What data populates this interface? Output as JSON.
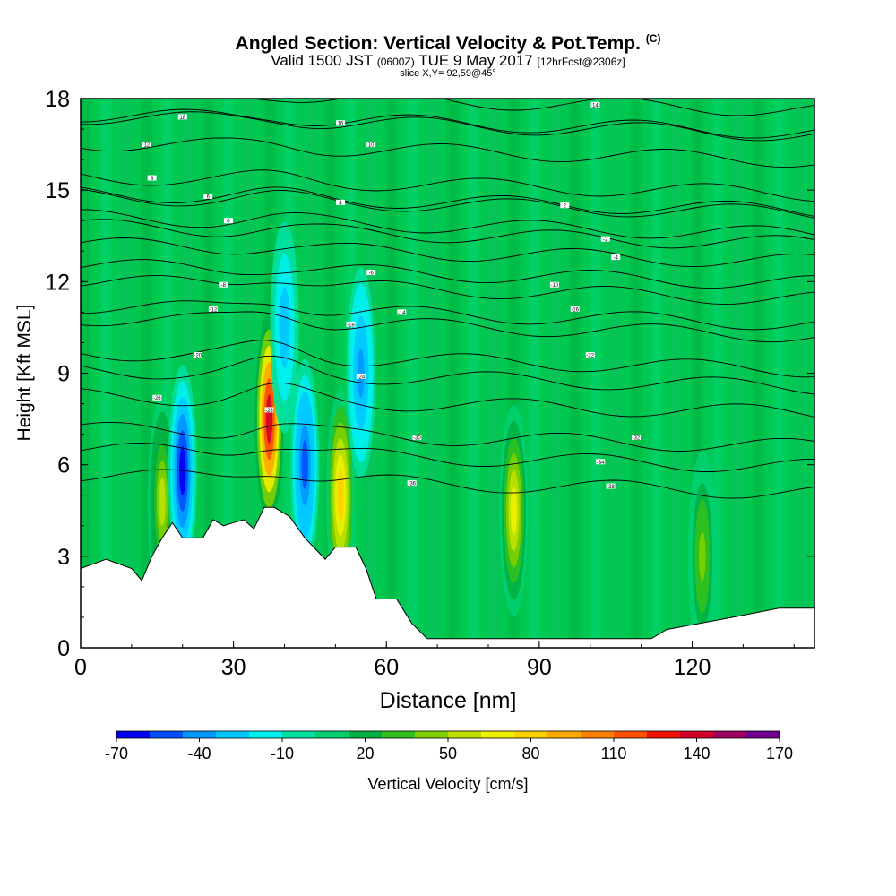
{
  "header": {
    "title_main": "Angled Section: Vertical Velocity & Pot.Temp.",
    "title_units": "(C)",
    "valid_prefix": "Valid 1500 JST",
    "valid_zone": "(0600Z)",
    "valid_date": "TUE 9 May 2017",
    "valid_fcst": "[12hrFcst@2306z]",
    "slice": "slice X,Y= 92,59@45°"
  },
  "chart_data": {
    "type": "heatmap",
    "xlabel": "Distance [nm]",
    "ylabel": "Height [Kft MSL]",
    "xlim": [
      0,
      144
    ],
    "ylim": [
      0,
      18
    ],
    "x_ticks": [
      0,
      30,
      60,
      90,
      120
    ],
    "y_ticks": [
      0,
      3,
      6,
      9,
      12,
      15,
      18
    ],
    "colorbar": {
      "label": "Vertical Velocity [cm/s]",
      "tick_labels": [
        "-70",
        "-40",
        "-10",
        "20",
        "50",
        "80",
        "110",
        "140",
        "170"
      ],
      "colors": [
        "#0000f0",
        "#0050ff",
        "#0096ff",
        "#00c8ff",
        "#00f0f0",
        "#00e0a0",
        "#00d070",
        "#00b040",
        "#30c020",
        "#80d000",
        "#c0e000",
        "#f0f000",
        "#ffd000",
        "#ffa800",
        "#ff8000",
        "#ff5000",
        "#f01000",
        "#d00028",
        "#a00060",
        "#700090"
      ]
    },
    "terrain_profile": [
      [
        0,
        2.6
      ],
      [
        5,
        2.9
      ],
      [
        10,
        2.6
      ],
      [
        12,
        2.2
      ],
      [
        14,
        3.0
      ],
      [
        16,
        3.6
      ],
      [
        18,
        4.1
      ],
      [
        20,
        3.6
      ],
      [
        24,
        3.6
      ],
      [
        26,
        4.2
      ],
      [
        28,
        4.0
      ],
      [
        32,
        4.2
      ],
      [
        34,
        3.9
      ],
      [
        36,
        4.6
      ],
      [
        38,
        4.6
      ],
      [
        41,
        4.3
      ],
      [
        44,
        3.6
      ],
      [
        48,
        2.9
      ],
      [
        50,
        3.3
      ],
      [
        54,
        3.3
      ],
      [
        56,
        2.6
      ],
      [
        58,
        1.6
      ],
      [
        62,
        1.6
      ],
      [
        65,
        0.8
      ],
      [
        68,
        0.3
      ],
      [
        112,
        0.3
      ],
      [
        115,
        0.6
      ],
      [
        128,
        1.0
      ],
      [
        137,
        1.3
      ],
      [
        144,
        1.3
      ]
    ],
    "updrafts_cms": [
      {
        "x": 37,
        "z": 7.5,
        "peak": 140
      },
      {
        "x": 51,
        "z": 5.0,
        "peak": 80
      },
      {
        "x": 85,
        "z": 4.5,
        "peak": 70
      },
      {
        "x": 122,
        "z": 3.0,
        "peak": 40
      },
      {
        "x": 16,
        "z": 4.8,
        "peak": 50
      }
    ],
    "downdrafts_cms": [
      {
        "x": 20,
        "z": 5.8,
        "peak": -60
      },
      {
        "x": 44,
        "z": 6.0,
        "peak": -50
      },
      {
        "x": 55,
        "z": 9.0,
        "peak": -40
      },
      {
        "x": 40,
        "z": 10.5,
        "peak": -30
      }
    ],
    "isotherm_labels": [
      {
        "x": 20,
        "z": 17.4,
        "text": "18"
      },
      {
        "x": 51,
        "z": 17.2,
        "text": "16"
      },
      {
        "x": 101,
        "z": 17.8,
        "text": "14"
      },
      {
        "x": 13,
        "z": 16.5,
        "text": "12"
      },
      {
        "x": 57,
        "z": 16.5,
        "text": "10"
      },
      {
        "x": 14,
        "z": 15.4,
        "text": "8"
      },
      {
        "x": 25,
        "z": 14.8,
        "text": "6"
      },
      {
        "x": 51,
        "z": 14.6,
        "text": "4"
      },
      {
        "x": 95,
        "z": 14.5,
        "text": "2"
      },
      {
        "x": 29,
        "z": 14.0,
        "text": "0"
      },
      {
        "x": 103,
        "z": 13.4,
        "text": "-2"
      },
      {
        "x": 105,
        "z": 12.8,
        "text": "-4"
      },
      {
        "x": 57,
        "z": 12.3,
        "text": "-6"
      },
      {
        "x": 28,
        "z": 11.9,
        "text": "-8"
      },
      {
        "x": 93,
        "z": 11.9,
        "text": "-10"
      },
      {
        "x": 26,
        "z": 11.1,
        "text": "-12"
      },
      {
        "x": 63,
        "z": 11.0,
        "text": "-14"
      },
      {
        "x": 97,
        "z": 11.1,
        "text": "-16"
      },
      {
        "x": 53,
        "z": 10.6,
        "text": "-18"
      },
      {
        "x": 23,
        "z": 9.6,
        "text": "-20"
      },
      {
        "x": 100,
        "z": 9.6,
        "text": "-22"
      },
      {
        "x": 55,
        "z": 8.9,
        "text": "-24"
      },
      {
        "x": 15,
        "z": 8.2,
        "text": "-26"
      },
      {
        "x": 37,
        "z": 7.8,
        "text": "-28"
      },
      {
        "x": 66,
        "z": 6.9,
        "text": "-30"
      },
      {
        "x": 109,
        "z": 6.9,
        "text": "-32"
      },
      {
        "x": 102,
        "z": 6.1,
        "text": "-34"
      },
      {
        "x": 65,
        "z": 5.4,
        "text": "-36"
      },
      {
        "x": 104,
        "z": 5.3,
        "text": "-38"
      }
    ]
  }
}
